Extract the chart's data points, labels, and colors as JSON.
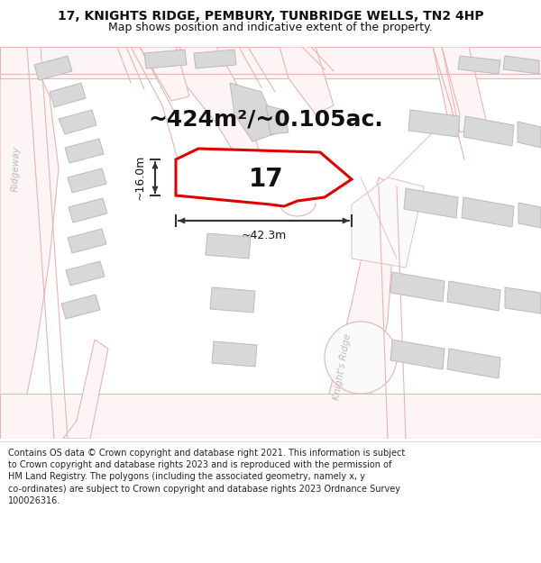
{
  "title_line1": "17, KNIGHTS RIDGE, PEMBURY, TUNBRIDGE WELLS, TN2 4HP",
  "title_line2": "Map shows position and indicative extent of the property.",
  "area_label": "~424m²/~0.105ac.",
  "width_label": "~42.3m",
  "height_label": "~16.0m",
  "property_number": "17",
  "footer": "Contains OS data © Crown copyright and database right 2021. This information is subject to Crown copyright and database rights 2023 and is reproduced with the permission of HM Land Registry. The polygons (including the associated geometry, namely x, y co-ordinates) are subject to Crown copyright and database rights 2023 Ordnance Survey 100026316.",
  "map_bg": "#ffffff",
  "road_line_color": "#e8b4b4",
  "building_color": "#d8d8d8",
  "building_edge": "#bbbbbb",
  "highlight_color": "#dd0000",
  "text_color": "#111111",
  "road_label_color": "#bbbbbb",
  "title_bg": "#ffffff",
  "footer_bg": "#ffffff",
  "title_fontsize": 10,
  "subtitle_fontsize": 9,
  "area_fontsize": 18,
  "number_fontsize": 20,
  "dim_fontsize": 9,
  "road_label_fontsize": 7.5,
  "footer_fontsize": 7
}
